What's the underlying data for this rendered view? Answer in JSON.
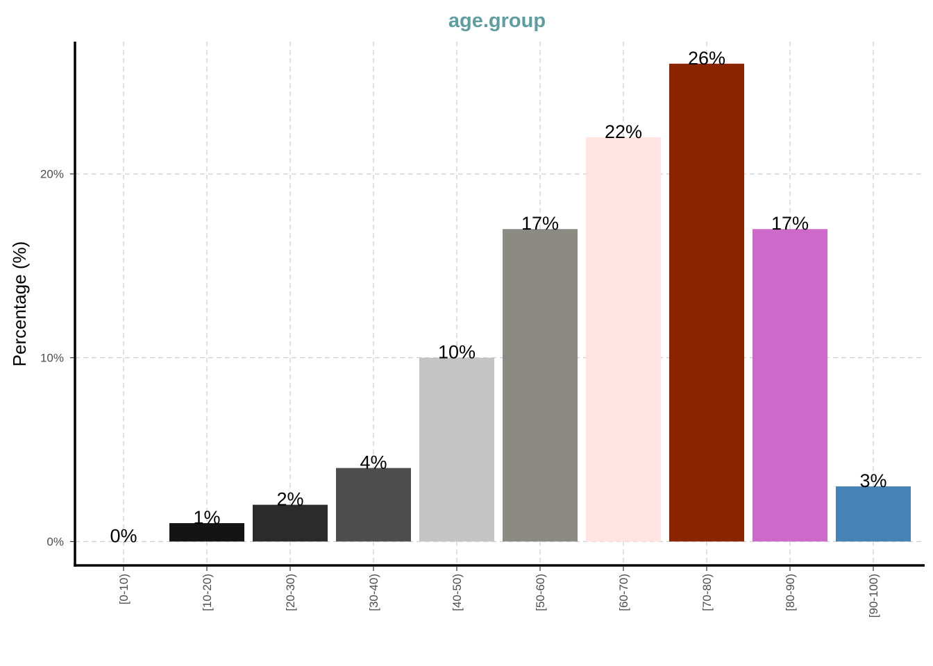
{
  "chart_data": {
    "type": "bar",
    "title": "age.group",
    "title_color": "#5f9ea0",
    "xlabel": "",
    "ylabel": "Percentage (%)",
    "categories": [
      "[0-10)",
      "[10-20)",
      "[20-30)",
      "[30-40)",
      "[40-50)",
      "[50-60)",
      "[60-70)",
      "[70-80)",
      "[80-90)",
      "[90-100)"
    ],
    "values": [
      0,
      1,
      2,
      4,
      10,
      17,
      22,
      26,
      17,
      3
    ],
    "data_labels": [
      "0%",
      "1%",
      "2%",
      "4%",
      "10%",
      "17%",
      "22%",
      "26%",
      "17%",
      "3%"
    ],
    "colors": [
      "#ffffff",
      "#141414",
      "#2b2b2b",
      "#4d4d4d",
      "#c4c4c4",
      "#8b8b83",
      "#ffe4e1",
      "#8b2500",
      "#cd69c9",
      "#4682b4"
    ],
    "y_ticks": [
      0,
      10,
      20
    ],
    "y_tick_labels": [
      "0%",
      "10%",
      "20%"
    ],
    "ylim": [
      -1.3,
      27.2
    ],
    "grid": true,
    "grid_style": "dashed",
    "legend": "none",
    "x_tick_label_rotation": -90
  }
}
